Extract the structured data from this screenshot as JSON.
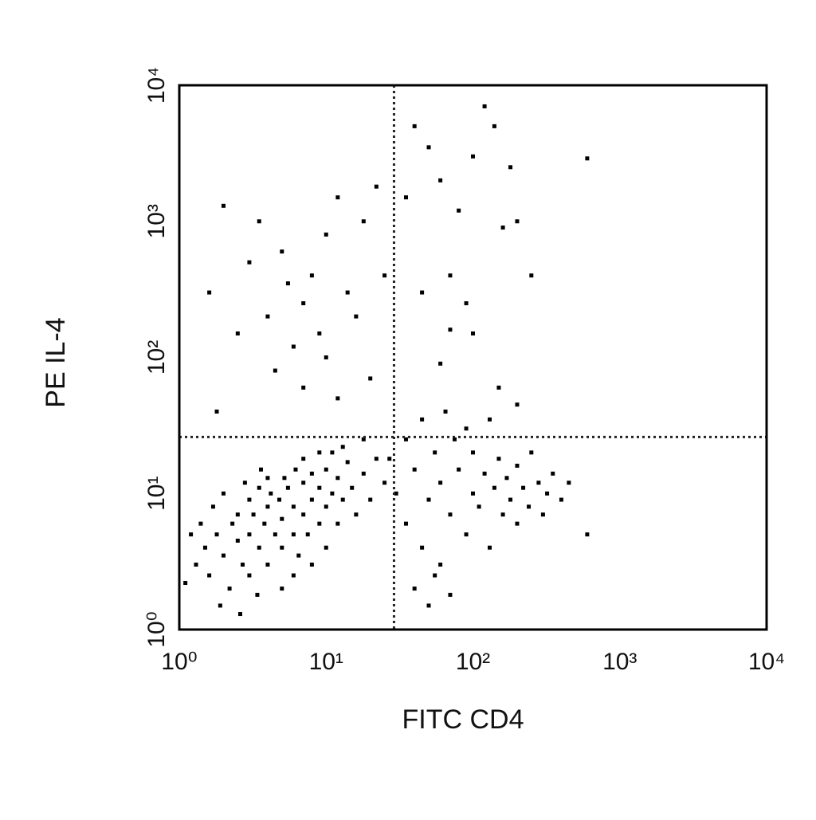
{
  "chart_data": {
    "type": "scatter",
    "x_label": "FITC CD4",
    "y_label": "PE IL-4",
    "x_log": true,
    "y_log": true,
    "xlim": [
      1,
      10000
    ],
    "ylim": [
      1,
      10000
    ],
    "xticks": [
      {
        "value": 1,
        "label": "10⁰"
      },
      {
        "value": 10,
        "label": "10¹"
      },
      {
        "value": 100,
        "label": "10²"
      },
      {
        "value": 1000,
        "label": "10³"
      },
      {
        "value": 10000,
        "label": "10⁴"
      }
    ],
    "yticks": [
      {
        "value": 1,
        "label": "10⁰"
      },
      {
        "value": 10,
        "label": "10¹"
      },
      {
        "value": 100,
        "label": "10²"
      },
      {
        "value": 1000,
        "label": "10³"
      },
      {
        "value": 10000,
        "label": "10⁴"
      }
    ],
    "quadrant_gates": {
      "x": 29,
      "y": 26
    },
    "grid": false,
    "series": [
      {
        "color": "#000000",
        "x": [
          1.3,
          1.5,
          1.6,
          1.8,
          2,
          2.2,
          2.3,
          2.5,
          2.7,
          3,
          3,
          3.2,
          3.5,
          3.8,
          4,
          4,
          4.5,
          4.8,
          5,
          5,
          5.5,
          6,
          6,
          6.5,
          7,
          7,
          7.5,
          8,
          8,
          9,
          9,
          10,
          10,
          11,
          12,
          12,
          13,
          14,
          15,
          16,
          1.4,
          1.7,
          2,
          2.5,
          3,
          3.5,
          4,
          1.9,
          2.6,
          3.4,
          5,
          6,
          8,
          10,
          4.2,
          5.2,
          6.2,
          7,
          9,
          11,
          13,
          18,
          20,
          22,
          25,
          18,
          1.2,
          1.1,
          2.8,
          3.6,
          30,
          35,
          40,
          45,
          50,
          55,
          60,
          60,
          70,
          75,
          80,
          90,
          100,
          100,
          110,
          120,
          130,
          140,
          150,
          160,
          170,
          180,
          200,
          200,
          220,
          240,
          250,
          280,
          300,
          320,
          350,
          400,
          450,
          600,
          35,
          40,
          50,
          55,
          70,
          90,
          130,
          200,
          45,
          65,
          27,
          1.6,
          2,
          1.8,
          2.5,
          3,
          3.5,
          4,
          4.5,
          5,
          5.5,
          6,
          7,
          7,
          8,
          9,
          10,
          10,
          12,
          12,
          14,
          16,
          18,
          20,
          22,
          25,
          40,
          50,
          60,
          70,
          80,
          90,
          100,
          120,
          140,
          160,
          180,
          200,
          100,
          60,
          45,
          70,
          150,
          250,
          600,
          35
        ],
        "y": [
          3,
          4,
          2.5,
          5,
          3.5,
          2,
          6,
          4.5,
          3,
          5,
          2.5,
          7,
          4,
          6,
          3,
          8,
          5,
          9,
          4,
          6.5,
          11,
          5,
          8,
          3.5,
          7,
          12,
          5,
          9,
          14,
          6,
          11,
          8,
          15,
          10,
          6,
          13,
          9,
          17,
          11,
          7,
          6,
          8,
          10,
          7,
          9,
          11,
          13,
          1.5,
          1.3,
          1.8,
          2,
          2.5,
          3,
          4,
          10,
          13,
          15,
          18,
          20,
          20,
          22,
          14,
          9,
          18,
          12,
          25,
          5,
          2.2,
          12,
          15,
          10,
          6,
          15,
          4,
          9,
          20,
          3,
          12,
          7,
          25,
          15,
          5,
          10,
          20,
          8,
          14,
          4,
          11,
          18,
          7,
          13,
          9,
          6,
          16,
          11,
          8,
          20,
          12,
          7,
          10,
          14,
          9,
          12,
          5,
          25,
          2,
          1.5,
          2.5,
          1.8,
          30,
          35,
          45,
          35,
          40,
          18,
          300,
          1300,
          40,
          150,
          500,
          1000,
          200,
          80,
          600,
          350,
          120,
          250,
          60,
          400,
          150,
          800,
          100,
          1500,
          50,
          300,
          200,
          1000,
          70,
          1800,
          400,
          5000,
          3500,
          2000,
          400,
          1200,
          250,
          3000,
          7000,
          5000,
          900,
          2500,
          1000,
          150,
          90,
          300,
          160,
          60,
          400,
          2900,
          1500
        ]
      }
    ]
  }
}
